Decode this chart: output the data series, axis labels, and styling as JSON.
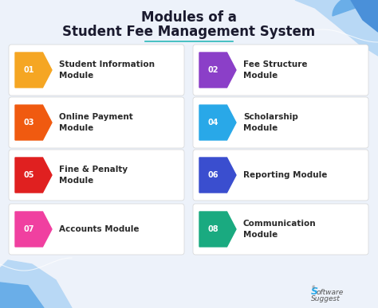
{
  "title_line1": "Modules of a",
  "title_line2": "Student Fee Management System",
  "bg_color": "#edf2fa",
  "title_color": "#1a1a2e",
  "divider_color": "#2ab8b8",
  "modules": [
    {
      "num": "01",
      "text": "Student Information\nModule",
      "color": "#f5a623",
      "row": 0,
      "col": 0
    },
    {
      "num": "02",
      "text": "Fee Structure\nModule",
      "color": "#8b3fc8",
      "row": 0,
      "col": 1
    },
    {
      "num": "03",
      "text": "Online Payment\nModule",
      "color": "#f05a10",
      "row": 1,
      "col": 0
    },
    {
      "num": "04",
      "text": "Scholarship\nModule",
      "color": "#29a8e8",
      "row": 1,
      "col": 1
    },
    {
      "num": "05",
      "text": "Fine & Penalty\nModule",
      "color": "#e02020",
      "row": 2,
      "col": 0
    },
    {
      "num": "06",
      "text": "Reporting Module",
      "color": "#3a4ecf",
      "row": 2,
      "col": 1
    },
    {
      "num": "07",
      "text": "Accounts Module",
      "color": "#f040a0",
      "row": 3,
      "col": 0
    },
    {
      "num": "08",
      "text": "Communication\nModule",
      "color": "#1aaa80",
      "row": 3,
      "col": 1
    }
  ],
  "top_right_wave_colors": [
    "#a8cef5",
    "#6aaee8",
    "#4a90d9"
  ],
  "bottom_left_wave_colors": [
    "#a8cef5",
    "#6aaee8"
  ],
  "watermark_color": "#555555"
}
